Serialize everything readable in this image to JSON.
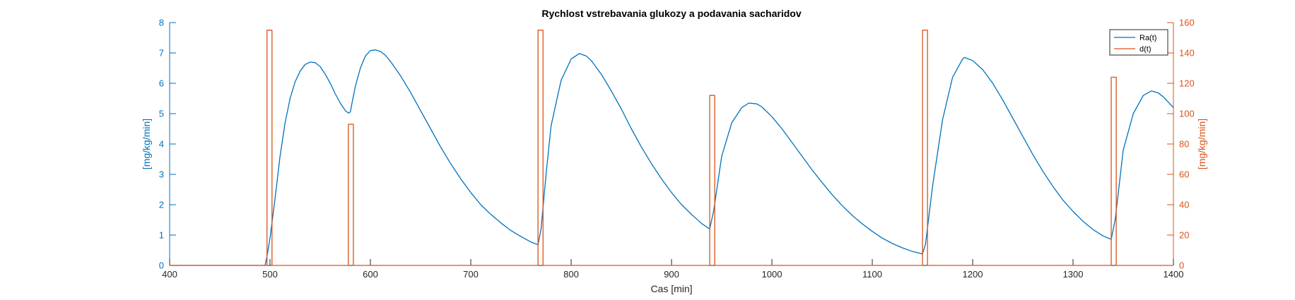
{
  "chart_data": {
    "type": "line",
    "title": "Rychlost vstrebavania glukozy a podavania sacharidov",
    "xlabel": "Cas [min]",
    "ylabel_left": "[mg/kg/min]",
    "ylabel_right": "[mg/kg/min]",
    "xlim": [
      400,
      1400
    ],
    "ylim_left": [
      0,
      8
    ],
    "ylim_right": [
      0,
      160
    ],
    "x_ticks": [
      400,
      500,
      600,
      700,
      800,
      900,
      1000,
      1100,
      1200,
      1300,
      1400
    ],
    "y_left_ticks": [
      0,
      1,
      2,
      3,
      4,
      5,
      6,
      7,
      8
    ],
    "y_right_ticks": [
      0,
      20,
      40,
      60,
      80,
      100,
      120,
      140,
      160
    ],
    "legend_position": "top-right",
    "grid": false,
    "colors": {
      "ra": "#0072BD",
      "d": "#D95319",
      "axis": "#262626"
    },
    "series": [
      {
        "name": "Ra(t)",
        "axis": "left",
        "x": [
          400,
          495,
          497,
          500,
          505,
          510,
          515,
          520,
          525,
          530,
          535,
          540,
          545,
          550,
          555,
          560,
          565,
          570,
          575,
          578,
          580,
          582,
          585,
          590,
          595,
          600,
          605,
          610,
          615,
          620,
          630,
          640,
          650,
          660,
          670,
          680,
          690,
          700,
          710,
          720,
          730,
          740,
          750,
          760,
          767,
          770,
          775,
          780,
          790,
          800,
          808,
          815,
          820,
          830,
          840,
          850,
          860,
          870,
          880,
          890,
          900,
          910,
          920,
          930,
          938,
          942,
          950,
          960,
          970,
          977,
          985,
          990,
          1000,
          1010,
          1020,
          1030,
          1040,
          1050,
          1060,
          1070,
          1080,
          1090,
          1100,
          1110,
          1120,
          1130,
          1140,
          1150,
          1153,
          1160,
          1170,
          1180,
          1190,
          1192,
          1200,
          1210,
          1220,
          1230,
          1240,
          1250,
          1260,
          1270,
          1280,
          1290,
          1300,
          1310,
          1320,
          1330,
          1338,
          1342,
          1350,
          1360,
          1370,
          1378,
          1385,
          1390,
          1400
        ],
        "y": [
          0,
          0,
          0.3,
          0.9,
          2.2,
          3.6,
          4.7,
          5.5,
          6.05,
          6.4,
          6.62,
          6.7,
          6.68,
          6.55,
          6.3,
          6.0,
          5.65,
          5.35,
          5.1,
          5.02,
          5.05,
          5.4,
          5.9,
          6.5,
          6.9,
          7.08,
          7.1,
          7.05,
          6.92,
          6.72,
          6.25,
          5.7,
          5.1,
          4.5,
          3.9,
          3.35,
          2.85,
          2.4,
          2.0,
          1.68,
          1.4,
          1.15,
          0.95,
          0.77,
          0.68,
          1.2,
          3.0,
          4.6,
          6.1,
          6.8,
          6.98,
          6.9,
          6.75,
          6.3,
          5.75,
          5.15,
          4.5,
          3.9,
          3.35,
          2.85,
          2.4,
          2.0,
          1.68,
          1.38,
          1.2,
          1.8,
          3.6,
          4.7,
          5.2,
          5.35,
          5.32,
          5.22,
          4.9,
          4.5,
          4.05,
          3.6,
          3.15,
          2.73,
          2.33,
          1.97,
          1.65,
          1.37,
          1.12,
          0.9,
          0.72,
          0.58,
          0.46,
          0.38,
          0.7,
          2.6,
          4.8,
          6.2,
          6.8,
          6.85,
          6.75,
          6.45,
          6.0,
          5.45,
          4.85,
          4.25,
          3.65,
          3.1,
          2.6,
          2.15,
          1.78,
          1.45,
          1.18,
          0.97,
          0.86,
          1.5,
          3.8,
          5.0,
          5.6,
          5.75,
          5.68,
          5.55,
          5.2
        ]
      },
      {
        "name": "d(t)",
        "axis": "right",
        "x": [
          400,
          497,
          497,
          502,
          502,
          578,
          578,
          583,
          583,
          767,
          767,
          772,
          772,
          938,
          938,
          943,
          943,
          1150,
          1150,
          1155,
          1155,
          1338,
          1338,
          1343,
          1343,
          1400
        ],
        "y": [
          0,
          0,
          155,
          155,
          0,
          0,
          93,
          93,
          0,
          0,
          155,
          155,
          0,
          0,
          112,
          112,
          0,
          0,
          155,
          155,
          0,
          0,
          124,
          124,
          0,
          0
        ]
      }
    ]
  }
}
